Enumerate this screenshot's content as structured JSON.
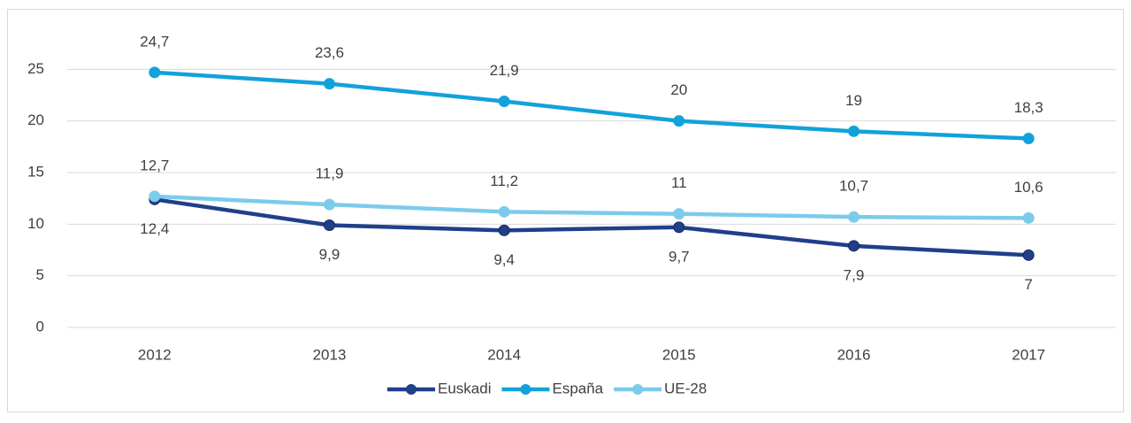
{
  "chart_data": {
    "type": "line",
    "categories": [
      "2012",
      "2013",
      "2014",
      "2015",
      "2016",
      "2017"
    ],
    "series": [
      {
        "name": "Euskadi",
        "color": "#203f8a",
        "values": [
          12.4,
          9.9,
          9.4,
          9.7,
          7.9,
          7
        ],
        "value_labels": [
          "12,4",
          "9,9",
          "9,4",
          "9,7",
          "7,9",
          "7"
        ]
      },
      {
        "name": "España",
        "color": "#12a2da",
        "values": [
          24.7,
          23.6,
          21.9,
          20,
          19,
          18.3
        ],
        "value_labels": [
          "24,7",
          "23,6",
          "21,9",
          "20",
          "19",
          "18,3"
        ]
      },
      {
        "name": "UE-28",
        "color": "#7ccbeb",
        "values": [
          12.7,
          11.9,
          11.2,
          11,
          10.7,
          10.6
        ],
        "value_labels": [
          "12,7",
          "11,9",
          "11,2",
          "11",
          "10,7",
          "10,6"
        ]
      }
    ],
    "ylim": [
      0,
      30
    ],
    "yticks": [
      0,
      5,
      10,
      15,
      20,
      25
    ],
    "grid": true,
    "legend": "bottom"
  }
}
